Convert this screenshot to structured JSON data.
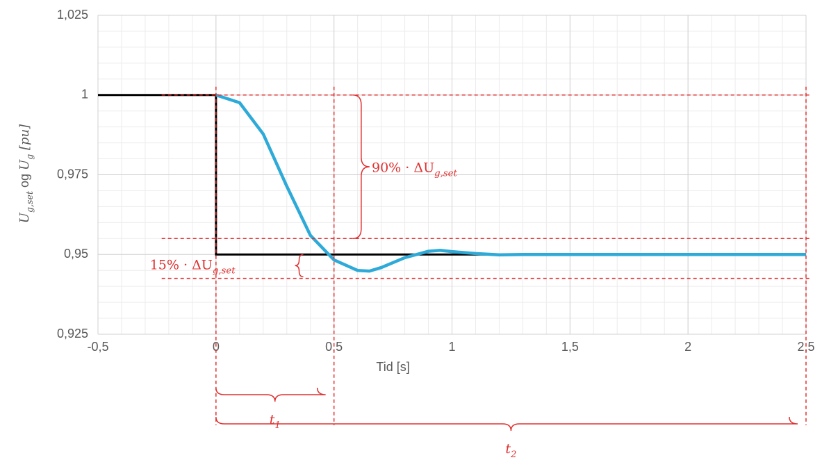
{
  "chart_data": {
    "type": "line",
    "ylabel": [
      {
        "text": "U",
        "sub": "g,set",
        "italic": true
      },
      {
        "text": " og "
      },
      {
        "text": "U",
        "sub": "g",
        "italic": true
      },
      {
        "text": " [pu]",
        "italic": true
      }
    ],
    "xlabel": "Tid [s]",
    "xlim": [
      -0.5,
      2.5
    ],
    "ylim": [
      0.925,
      1.025
    ],
    "xticks": [
      {
        "value": -0.5,
        "label": "-0,5"
      },
      0,
      {
        "value": 0.5,
        "label": "0,5"
      },
      1,
      {
        "value": 1.5,
        "label": "1,5"
      },
      2,
      {
        "value": 2.5,
        "label": "2,5"
      }
    ],
    "yticks": [
      {
        "value": 0.925,
        "label": "0,925"
      },
      {
        "value": 0.95,
        "label": "0,95"
      },
      {
        "value": 0.975,
        "label": "0,975"
      },
      1,
      {
        "value": 1.025,
        "label": "1,025"
      }
    ],
    "grid": true,
    "xminor": 0.1,
    "yminor": 0.005,
    "series": [
      {
        "color": "#000000",
        "x": [
          -0.5,
          0,
          0,
          2.5
        ],
        "values": [
          1,
          1,
          0.95,
          0.95
        ]
      },
      {
        "color": "#2eaad8",
        "x": [
          0,
          0.1,
          0.2,
          0.3,
          0.4,
          0.5,
          0.6,
          0.65,
          0.7,
          0.8,
          0.9,
          0.95,
          1.0,
          1.1,
          1.2,
          1.3,
          1.5,
          2.0,
          2.5
        ],
        "values": [
          1,
          0.9976,
          0.9878,
          0.9714,
          0.956,
          0.9483,
          0.945,
          0.9448,
          0.9459,
          0.949,
          0.951,
          0.9513,
          0.9509,
          0.9503,
          0.9499,
          0.95,
          0.95,
          0.95,
          0.95
        ]
      }
    ],
    "hlines": [
      1,
      0.955,
      0.9425
    ],
    "vlines": [
      0,
      0.5,
      2.5
    ],
    "annotations": {
      "band90": {
        "text": "90% · ΔU",
        "sub": "g,set"
      },
      "band15": {
        "text": "15% · ΔU",
        "sub": "g,set"
      },
      "t1": {
        "text": "t",
        "sub": "1"
      },
      "t2": {
        "text": "t",
        "sub": "2"
      }
    }
  }
}
